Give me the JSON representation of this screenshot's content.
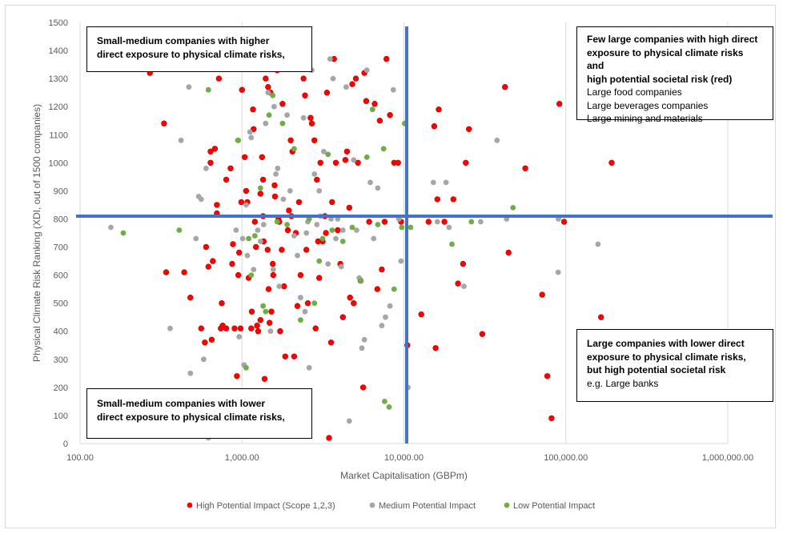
{
  "chart_data": {
    "type": "scatter",
    "title": "",
    "xlabel": "Market Capitalisation (GBPm)",
    "ylabel": "Physical Climate Risk Ranking (XDI, out of 1500 companies)",
    "x_scale": "log",
    "xlim": [
      100,
      1000000
    ],
    "ylim": [
      0,
      1500
    ],
    "x_ticks": [
      "100.00",
      "1,000.00",
      "10,000.00",
      "100,000.00",
      "1,000,000.00"
    ],
    "y_ticks": [
      "0",
      "100",
      "200",
      "300",
      "400",
      "500",
      "600",
      "700",
      "800",
      "900",
      "1000",
      "1100",
      "1200",
      "1300",
      "1400",
      "1500"
    ],
    "grid": "vertical",
    "legend_position": "bottom",
    "thresholds": {
      "x": 10400,
      "y": 810,
      "color": "#4472c4"
    },
    "series": [
      {
        "name": "High Potential Impact (Scope 1,2,3)",
        "color": "#ff0000",
        "points": [
          [
            270,
            1320
          ],
          [
            330,
            1140
          ],
          [
            340,
            610
          ],
          [
            440,
            610
          ],
          [
            480,
            520
          ],
          [
            560,
            410
          ],
          [
            590,
            360
          ],
          [
            600,
            700
          ],
          [
            620,
            630
          ],
          [
            640,
            1040
          ],
          [
            640,
            1000
          ],
          [
            650,
            370
          ],
          [
            660,
            650
          ],
          [
            680,
            1050
          ],
          [
            700,
            820
          ],
          [
            700,
            850
          ],
          [
            720,
            1300
          ],
          [
            740,
            410
          ],
          [
            750,
            500
          ],
          [
            760,
            420
          ],
          [
            800,
            940
          ],
          [
            800,
            410
          ],
          [
            850,
            980
          ],
          [
            870,
            640
          ],
          [
            880,
            710
          ],
          [
            900,
            410
          ],
          [
            930,
            240
          ],
          [
            950,
            600
          ],
          [
            960,
            680
          ],
          [
            980,
            410
          ],
          [
            990,
            860
          ],
          [
            1000,
            1260
          ],
          [
            1040,
            1020
          ],
          [
            1060,
            900
          ],
          [
            1080,
            860
          ],
          [
            1100,
            590
          ],
          [
            1140,
            410
          ],
          [
            1150,
            470
          ],
          [
            1170,
            1190
          ],
          [
            1180,
            1120
          ],
          [
            1200,
            790
          ],
          [
            1220,
            700
          ],
          [
            1240,
            420
          ],
          [
            1260,
            400
          ],
          [
            1300,
            440
          ],
          [
            1300,
            890
          ],
          [
            1330,
            1020
          ],
          [
            1350,
            940
          ],
          [
            1350,
            810
          ],
          [
            1360,
            720
          ],
          [
            1380,
            230
          ],
          [
            1400,
            1300
          ],
          [
            1440,
            690
          ],
          [
            1450,
            1270
          ],
          [
            1460,
            550
          ],
          [
            1480,
            430
          ],
          [
            1500,
            1250
          ],
          [
            1520,
            470
          ],
          [
            1550,
            640
          ],
          [
            1560,
            600
          ],
          [
            1590,
            920
          ],
          [
            1600,
            880
          ],
          [
            1650,
            1330
          ],
          [
            1680,
            800
          ],
          [
            1700,
            790
          ],
          [
            1720,
            400
          ],
          [
            1760,
            690
          ],
          [
            1780,
            1210
          ],
          [
            1820,
            560
          ],
          [
            1850,
            310
          ],
          [
            1920,
            760
          ],
          [
            1950,
            830
          ],
          [
            2000,
            1080
          ],
          [
            2020,
            810
          ],
          [
            2050,
            1040
          ],
          [
            2100,
            310
          ],
          [
            2150,
            750
          ],
          [
            2200,
            490
          ],
          [
            2250,
            860
          ],
          [
            2300,
            600
          ],
          [
            2400,
            1300
          ],
          [
            2450,
            1240
          ],
          [
            2500,
            690
          ],
          [
            2550,
            500
          ],
          [
            2650,
            1160
          ],
          [
            2700,
            1140
          ],
          [
            2800,
            1080
          ],
          [
            2850,
            410
          ],
          [
            2900,
            940
          ],
          [
            2950,
            720
          ],
          [
            3000,
            590
          ],
          [
            3050,
            1000
          ],
          [
            3150,
            720
          ],
          [
            3250,
            810
          ],
          [
            3300,
            750
          ],
          [
            3350,
            1250
          ],
          [
            3450,
            20
          ],
          [
            3550,
            360
          ],
          [
            3600,
            860
          ],
          [
            3700,
            1370
          ],
          [
            3800,
            1000
          ],
          [
            3900,
            760
          ],
          [
            4050,
            640
          ],
          [
            4200,
            450
          ],
          [
            4350,
            1010
          ],
          [
            4450,
            1040
          ],
          [
            4600,
            840
          ],
          [
            4650,
            520
          ],
          [
            4800,
            1280
          ],
          [
            4900,
            500
          ],
          [
            5050,
            1300
          ],
          [
            5200,
            1000
          ],
          [
            5400,
            580
          ],
          [
            5600,
            200
          ],
          [
            5700,
            1320
          ],
          [
            5850,
            1220
          ],
          [
            6100,
            790
          ],
          [
            6600,
            1210
          ],
          [
            6850,
            550
          ],
          [
            7100,
            1150
          ],
          [
            7300,
            620
          ],
          [
            7600,
            790
          ],
          [
            7800,
            1370
          ],
          [
            8200,
            1170
          ],
          [
            8700,
            1000
          ],
          [
            9200,
            1000
          ],
          [
            9600,
            790
          ],
          [
            10500,
            350
          ],
          [
            12800,
            460
          ],
          [
            14200,
            790
          ],
          [
            15400,
            1130
          ],
          [
            15700,
            340
          ],
          [
            16100,
            870
          ],
          [
            16400,
            1190
          ],
          [
            17800,
            790
          ],
          [
            20200,
            870
          ],
          [
            21600,
            570
          ],
          [
            23200,
            640
          ],
          [
            24100,
            1000
          ],
          [
            25200,
            1120
          ],
          [
            30500,
            390
          ],
          [
            42100,
            1270
          ],
          [
            44300,
            680
          ],
          [
            56200,
            980
          ],
          [
            71400,
            530
          ],
          [
            76800,
            240
          ],
          [
            81600,
            90
          ],
          [
            91200,
            1210
          ],
          [
            97600,
            790
          ],
          [
            165000,
            450
          ],
          [
            192000,
            1000
          ]
        ]
      },
      {
        "name": "Medium Potential Impact",
        "color": "#a6a6a6",
        "points": [
          [
            155,
            770
          ],
          [
            360,
            410
          ],
          [
            420,
            1080
          ],
          [
            470,
            1270
          ],
          [
            480,
            250
          ],
          [
            520,
            730
          ],
          [
            540,
            880
          ],
          [
            560,
            870
          ],
          [
            580,
            300
          ],
          [
            600,
            980
          ],
          [
            620,
            20
          ],
          [
            920,
            760
          ],
          [
            940,
            1080
          ],
          [
            960,
            380
          ],
          [
            1010,
            730
          ],
          [
            1030,
            280
          ],
          [
            1060,
            850
          ],
          [
            1080,
            670
          ],
          [
            1120,
            1110
          ],
          [
            1140,
            1090
          ],
          [
            1180,
            620
          ],
          [
            1250,
            760
          ],
          [
            1300,
            720
          ],
          [
            1360,
            780
          ],
          [
            1400,
            1140
          ],
          [
            1450,
            1250
          ],
          [
            1500,
            400
          ],
          [
            1560,
            620
          ],
          [
            1580,
            1200
          ],
          [
            1620,
            960
          ],
          [
            1660,
            980
          ],
          [
            1700,
            560
          ],
          [
            1800,
            870
          ],
          [
            1900,
            1170
          ],
          [
            1980,
            900
          ],
          [
            2100,
            740
          ],
          [
            2200,
            670
          ],
          [
            2300,
            520
          ],
          [
            2400,
            1160
          ],
          [
            2450,
            470
          ],
          [
            2500,
            750
          ],
          [
            2550,
            790
          ],
          [
            2600,
            270
          ],
          [
            2700,
            1330
          ],
          [
            2800,
            960
          ],
          [
            2900,
            780
          ],
          [
            3000,
            900
          ],
          [
            3050,
            810
          ],
          [
            3200,
            1040
          ],
          [
            3400,
            640
          ],
          [
            3500,
            1370
          ],
          [
            3550,
            800
          ],
          [
            3650,
            1300
          ],
          [
            3800,
            730
          ],
          [
            3900,
            800
          ],
          [
            4100,
            630
          ],
          [
            4200,
            760
          ],
          [
            4400,
            1270
          ],
          [
            4600,
            80
          ],
          [
            4900,
            1010
          ],
          [
            5100,
            760
          ],
          [
            5300,
            590
          ],
          [
            5500,
            340
          ],
          [
            5700,
            370
          ],
          [
            5900,
            1330
          ],
          [
            6200,
            930
          ],
          [
            6500,
            730
          ],
          [
            6900,
            910
          ],
          [
            7300,
            420
          ],
          [
            7700,
            450
          ],
          [
            8200,
            490
          ],
          [
            8600,
            1260
          ],
          [
            9300,
            800
          ],
          [
            9600,
            650
          ],
          [
            10600,
            200
          ],
          [
            15200,
            930
          ],
          [
            16100,
            790
          ],
          [
            18200,
            930
          ],
          [
            19000,
            770
          ],
          [
            23500,
            560
          ],
          [
            29800,
            790
          ],
          [
            37600,
            1080
          ],
          [
            43100,
            800
          ],
          [
            89700,
            610
          ],
          [
            158000,
            710
          ],
          [
            90000,
            800
          ]
        ]
      },
      {
        "name": "Low Potential Impact",
        "color": "#70ad47",
        "points": [
          [
            185,
            750
          ],
          [
            410,
            760
          ],
          [
            620,
            1260
          ],
          [
            950,
            1080
          ],
          [
            1060,
            270
          ],
          [
            1100,
            730
          ],
          [
            1140,
            600
          ],
          [
            1200,
            740
          ],
          [
            1300,
            910
          ],
          [
            1350,
            490
          ],
          [
            1400,
            470
          ],
          [
            1470,
            1170
          ],
          [
            1550,
            1240
          ],
          [
            1650,
            790
          ],
          [
            1780,
            1140
          ],
          [
            1900,
            780
          ],
          [
            2100,
            1050
          ],
          [
            2300,
            440
          ],
          [
            2600,
            800
          ],
          [
            2800,
            500
          ],
          [
            3000,
            650
          ],
          [
            3150,
            730
          ],
          [
            3400,
            1030
          ],
          [
            3600,
            760
          ],
          [
            4200,
            720
          ],
          [
            4800,
            770
          ],
          [
            5400,
            580
          ],
          [
            5900,
            1020
          ],
          [
            6400,
            1190
          ],
          [
            6900,
            780
          ],
          [
            7500,
            1050
          ],
          [
            7600,
            150
          ],
          [
            8100,
            130
          ],
          [
            8700,
            550
          ],
          [
            9700,
            770
          ],
          [
            10100,
            1140
          ],
          [
            11000,
            770
          ],
          [
            19800,
            710
          ],
          [
            26100,
            790
          ],
          [
            47200,
            840
          ]
        ]
      }
    ]
  },
  "annotations": {
    "top_left": {
      "bold_lines": [
        "Small-medium companies with higher",
        "direct exposure to physical climate risks,"
      ],
      "normal_lines": []
    },
    "top_right": {
      "bold_lines": [
        "Few large companies with high direct",
        "exposure to physical climate risks and",
        "high potential societal risk (red)"
      ],
      "normal_lines": [
        "Large food companies",
        "Large beverages companies",
        "Large mining and materials"
      ]
    },
    "bottom_right": {
      "bold_lines": [
        "Large companies with lower direct",
        "exposure to physical climate risks,",
        "but high potential societal risk"
      ],
      "normal_lines": [
        "e.g. Large banks"
      ]
    },
    "bottom_left": {
      "bold_lines": [
        "Small-medium companies with lower",
        "direct exposure to physical climate risks,"
      ],
      "normal_lines": []
    }
  }
}
